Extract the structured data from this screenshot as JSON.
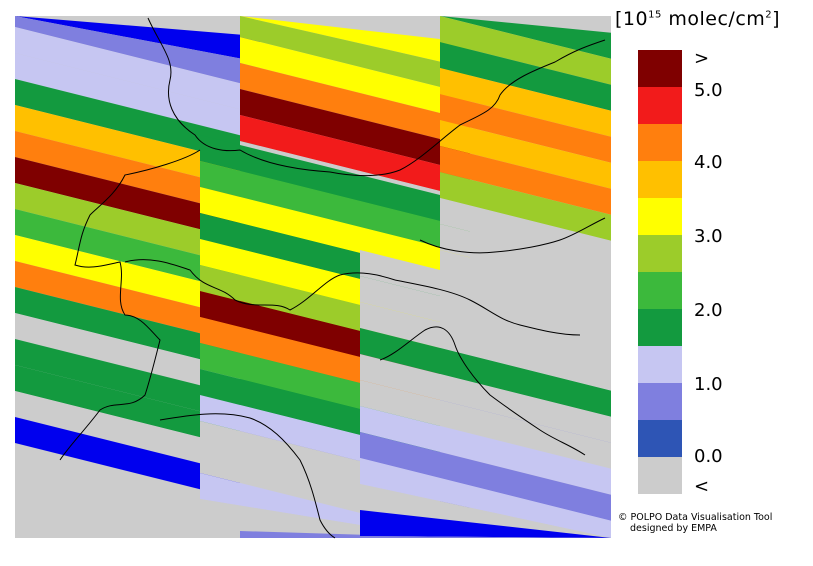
{
  "legend": {
    "unit_prefix": "[10",
    "unit_exponent": "15",
    "unit_suffix": " molec/cm",
    "unit_power": "2",
    "unit_close": "]",
    "ticks": [
      ">",
      "5.0",
      "4.0",
      "3.0",
      "2.0",
      "1.0",
      "0.0",
      "<"
    ],
    "colors": [
      "#7f0000",
      "#f21b1b",
      "#ff7f0e",
      "#ffc000",
      "#ffff00",
      "#9ccc2a",
      "#3cb93c",
      "#139a3f",
      "#c6c6f2",
      "#7f7fdf",
      "#2e55b5",
      "#cccccc"
    ]
  },
  "credit": {
    "line1": "© POLPO Data Visualisation Tool",
    "line2": "designed by EMPA"
  },
  "map": {
    "background_color": "#cccccc",
    "border_color": "#000000"
  }
}
